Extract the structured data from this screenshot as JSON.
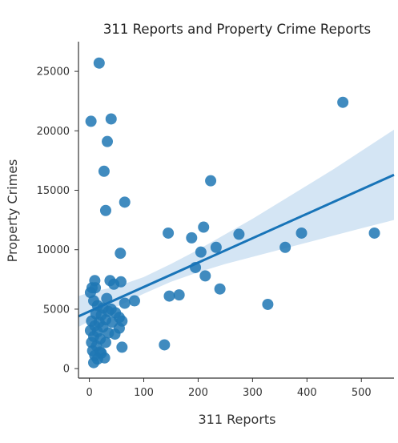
{
  "chart_data": {
    "type": "scatter",
    "title": "311 Reports and Property Crime Reports",
    "xlabel": "311 Reports",
    "ylabel": "Property Crimes",
    "xlim": [
      -20,
      560
    ],
    "ylim": [
      -800,
      27500
    ],
    "xticks": [
      0,
      100,
      200,
      300,
      400,
      500
    ],
    "yticks": [
      0,
      5000,
      10000,
      15000,
      20000,
      25000
    ],
    "grid": false,
    "legend": "none",
    "colors": {
      "points": "#1f77b4",
      "regression_line": "#1874b8",
      "confidence_band": "#c6dcf0"
    },
    "regression": {
      "x": [
        -20,
        560
      ],
      "y": [
        4400,
        16300
      ]
    },
    "confidence_band": {
      "x": [
        -20,
        0,
        50,
        100,
        150,
        200,
        250,
        300,
        350,
        400,
        450,
        500,
        560
      ],
      "lower": [
        3500,
        4000,
        5200,
        6300,
        7300,
        8100,
        8800,
        9400,
        10000,
        10600,
        11200,
        11800,
        12500
      ],
      "upper": [
        6100,
        6400,
        6900,
        7700,
        8800,
        10000,
        11300,
        12600,
        14000,
        15400,
        16800,
        18300,
        20100
      ]
    },
    "points": [
      {
        "x": 18,
        "y": 25700
      },
      {
        "x": 466,
        "y": 22400
      },
      {
        "x": 3,
        "y": 20800
      },
      {
        "x": 40,
        "y": 21000
      },
      {
        "x": 33,
        "y": 19100
      },
      {
        "x": 27,
        "y": 16600
      },
      {
        "x": 223,
        "y": 15800
      },
      {
        "x": 65,
        "y": 14000
      },
      {
        "x": 30,
        "y": 13300
      },
      {
        "x": 210,
        "y": 11900
      },
      {
        "x": 145,
        "y": 11400
      },
      {
        "x": 275,
        "y": 11300
      },
      {
        "x": 390,
        "y": 11400
      },
      {
        "x": 524,
        "y": 11400
      },
      {
        "x": 188,
        "y": 11000
      },
      {
        "x": 233,
        "y": 10200
      },
      {
        "x": 360,
        "y": 10200
      },
      {
        "x": 205,
        "y": 9800
      },
      {
        "x": 57,
        "y": 9700
      },
      {
        "x": 195,
        "y": 8500
      },
      {
        "x": 213,
        "y": 7800
      },
      {
        "x": 10,
        "y": 7400
      },
      {
        "x": 38,
        "y": 7400
      },
      {
        "x": 45,
        "y": 7100
      },
      {
        "x": 58,
        "y": 7300
      },
      {
        "x": 5,
        "y": 6800
      },
      {
        "x": 11,
        "y": 6800
      },
      {
        "x": 240,
        "y": 6700
      },
      {
        "x": 2,
        "y": 6400
      },
      {
        "x": 165,
        "y": 6200
      },
      {
        "x": 147,
        "y": 6100
      },
      {
        "x": 83,
        "y": 5700
      },
      {
        "x": 8,
        "y": 5700
      },
      {
        "x": 32,
        "y": 5900
      },
      {
        "x": 65,
        "y": 5500
      },
      {
        "x": 328,
        "y": 5400
      },
      {
        "x": 15,
        "y": 5300
      },
      {
        "x": 25,
        "y": 5100
      },
      {
        "x": 40,
        "y": 5000
      },
      {
        "x": 35,
        "y": 4800
      },
      {
        "x": 48,
        "y": 4700
      },
      {
        "x": 12,
        "y": 4600
      },
      {
        "x": 22,
        "y": 4500
      },
      {
        "x": 55,
        "y": 4300
      },
      {
        "x": 4,
        "y": 4000
      },
      {
        "x": 18,
        "y": 3900
      },
      {
        "x": 30,
        "y": 4100
      },
      {
        "x": 42,
        "y": 3900
      },
      {
        "x": 60,
        "y": 4000
      },
      {
        "x": 10,
        "y": 3600
      },
      {
        "x": 25,
        "y": 3500
      },
      {
        "x": 55,
        "y": 3400
      },
      {
        "x": 2,
        "y": 3200
      },
      {
        "x": 15,
        "y": 3100
      },
      {
        "x": 35,
        "y": 3000
      },
      {
        "x": 47,
        "y": 2900
      },
      {
        "x": 8,
        "y": 2700
      },
      {
        "x": 20,
        "y": 2500
      },
      {
        "x": 4,
        "y": 2200
      },
      {
        "x": 30,
        "y": 2200
      },
      {
        "x": 138,
        "y": 2000
      },
      {
        "x": 13,
        "y": 1900
      },
      {
        "x": 60,
        "y": 1800
      },
      {
        "x": 6,
        "y": 1500
      },
      {
        "x": 22,
        "y": 1300
      },
      {
        "x": 10,
        "y": 1100
      },
      {
        "x": 28,
        "y": 900
      },
      {
        "x": 15,
        "y": 800
      },
      {
        "x": 8,
        "y": 500
      },
      {
        "x": 20,
        "y": 1400
      }
    ]
  }
}
